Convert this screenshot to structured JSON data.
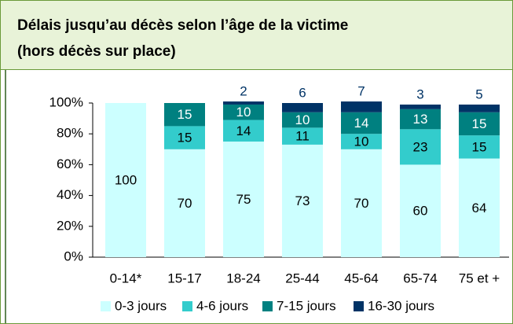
{
  "chart_data": {
    "type": "stacked_bar",
    "title_lines": [
      "Délais jusqu’au décès selon l’âge de la victime",
      "(hors décès sur place)"
    ],
    "categories": [
      "0-14*",
      "15-17",
      "18-24",
      "25-44",
      "45-64",
      "65-74",
      "75 et +"
    ],
    "series": [
      {
        "name": "0-3 jours",
        "color": "#ccffff",
        "values": [
          100,
          70,
          75,
          73,
          70,
          60,
          64
        ]
      },
      {
        "name": "4-6 jours",
        "color": "#33cccc",
        "values": [
          null,
          15,
          14,
          11,
          10,
          23,
          15
        ]
      },
      {
        "name": "7-15 jours",
        "color": "#008080",
        "values": [
          null,
          15,
          10,
          10,
          14,
          13,
          15
        ]
      },
      {
        "name": "16-30 jours",
        "color": "#003366",
        "values": [
          null,
          null,
          2,
          6,
          7,
          3,
          5
        ]
      }
    ],
    "ylim": [
      0,
      100
    ],
    "yticks": [
      {
        "value": 0,
        "label": "0%"
      },
      {
        "value": 20,
        "label": "20%"
      },
      {
        "value": 40,
        "label": "40%"
      },
      {
        "value": 60,
        "label": "60%"
      },
      {
        "value": 80,
        "label": "80%"
      },
      {
        "value": 100,
        "label": "100%"
      }
    ],
    "legend": "bottom"
  }
}
